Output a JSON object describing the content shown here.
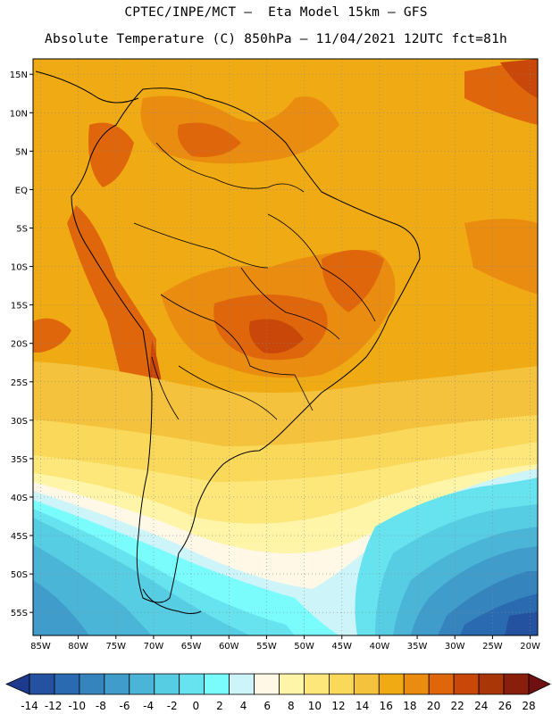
{
  "header": {
    "line1": "CPTEC/INPE/MCT –  Eta Model 15km – GFS",
    "line2": "Absolute Temperature (C) 850hPa – 11/04/2021 12UTC fct=81h"
  },
  "map": {
    "lon_range": [
      -86,
      -19
    ],
    "lat_range": [
      -58,
      17
    ],
    "lon_ticks": [
      {
        "value": -85,
        "label": "85W"
      },
      {
        "value": -80,
        "label": "80W"
      },
      {
        "value": -75,
        "label": "75W"
      },
      {
        "value": -70,
        "label": "70W"
      },
      {
        "value": -65,
        "label": "65W"
      },
      {
        "value": -60,
        "label": "60W"
      },
      {
        "value": -55,
        "label": "55W"
      },
      {
        "value": -50,
        "label": "50W"
      },
      {
        "value": -45,
        "label": "45W"
      },
      {
        "value": -40,
        "label": "40W"
      },
      {
        "value": -35,
        "label": "35W"
      },
      {
        "value": -30,
        "label": "30W"
      },
      {
        "value": -25,
        "label": "25W"
      },
      {
        "value": -20,
        "label": "20W"
      }
    ],
    "lat_ticks": [
      {
        "value": 15,
        "label": "15N"
      },
      {
        "value": 10,
        "label": "10N"
      },
      {
        "value": 5,
        "label": "5N"
      },
      {
        "value": 0,
        "label": "EQ"
      },
      {
        "value": -5,
        "label": "5S"
      },
      {
        "value": -10,
        "label": "10S"
      },
      {
        "value": -15,
        "label": "15S"
      },
      {
        "value": -20,
        "label": "20S"
      },
      {
        "value": -25,
        "label": "25S"
      },
      {
        "value": -30,
        "label": "30S"
      },
      {
        "value": -35,
        "label": "35S"
      },
      {
        "value": -40,
        "label": "40S"
      },
      {
        "value": -45,
        "label": "45S"
      },
      {
        "value": -50,
        "label": "50S"
      },
      {
        "value": -55,
        "label": "55S"
      }
    ]
  },
  "colorbar": {
    "colors": [
      "#1e3a8c",
      "#2452a0",
      "#2a6ab0",
      "#3584be",
      "#409cca",
      "#4bb5d8",
      "#57cde4",
      "#66e3ee",
      "#7afcfc",
      "#cdf4f9",
      "#fff8e6",
      "#fff5a8",
      "#fde77b",
      "#f9d85a",
      "#f4c23c",
      "#f0ab14",
      "#ea8c10",
      "#df660b",
      "#c94708",
      "#a93606",
      "#8a1e0c",
      "#6e1010"
    ],
    "labels": [
      {
        "value": -14,
        "label": "-14"
      },
      {
        "value": -12,
        "label": "-12"
      },
      {
        "value": -10,
        "label": "-10"
      },
      {
        "value": -8,
        "label": "-8"
      },
      {
        "value": -6,
        "label": "-6"
      },
      {
        "value": -4,
        "label": "-4"
      },
      {
        "value": -2,
        "label": "-2"
      },
      {
        "value": 0,
        "label": "0"
      },
      {
        "value": 2,
        "label": "2"
      },
      {
        "value": 4,
        "label": "4"
      },
      {
        "value": 6,
        "label": "6"
      },
      {
        "value": 8,
        "label": "8"
      },
      {
        "value": 10,
        "label": "10"
      },
      {
        "value": 12,
        "label": "12"
      },
      {
        "value": 14,
        "label": "14"
      },
      {
        "value": 16,
        "label": "16"
      },
      {
        "value": 18,
        "label": "18"
      },
      {
        "value": 20,
        "label": "20"
      },
      {
        "value": 22,
        "label": "22"
      },
      {
        "value": 24,
        "label": "24"
      },
      {
        "value": 26,
        "label": "26"
      },
      {
        "value": 28,
        "label": "28"
      }
    ]
  }
}
